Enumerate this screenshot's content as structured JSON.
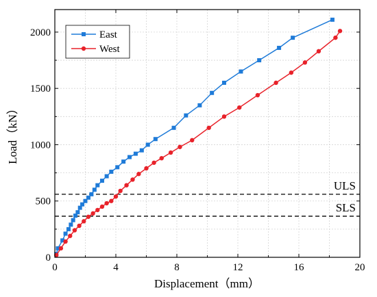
{
  "chart_data": {
    "type": "line",
    "title": "",
    "xlabel": "Displacement（mm）",
    "ylabel": "Load（kN）",
    "xlim": [
      0,
      20
    ],
    "ylim": [
      0,
      2200
    ],
    "xticks": [
      "0",
      "4",
      "8",
      "12",
      "16",
      "20"
    ],
    "yticks": [
      "0",
      "500",
      "1000",
      "1500",
      "2000"
    ],
    "xtick_values": [
      0,
      4,
      8,
      12,
      16,
      20
    ],
    "ytick_values": [
      0,
      500,
      1000,
      1500,
      2000
    ],
    "grid": true,
    "legend_position": "top-left",
    "reference_lines": [
      {
        "label": "ULS",
        "y": 560
      },
      {
        "label": "SLS",
        "y": 365
      }
    ],
    "series": [
      {
        "name": "East",
        "color": "#1f7bd8",
        "marker": "square",
        "x": [
          0.1,
          0.2,
          0.5,
          0.7,
          0.9,
          1.05,
          1.2,
          1.35,
          1.5,
          1.65,
          1.8,
          2.0,
          2.2,
          2.4,
          2.6,
          2.8,
          3.1,
          3.4,
          3.7,
          4.1,
          4.5,
          4.9,
          5.3,
          5.7,
          6.1,
          6.6,
          7.8,
          8.6,
          9.5,
          10.3,
          11.1,
          12.2,
          13.4,
          14.7,
          15.6,
          18.2
        ],
        "y": [
          30,
          80,
          150,
          210,
          250,
          290,
          330,
          370,
          400,
          440,
          470,
          500,
          530,
          560,
          600,
          640,
          680,
          720,
          760,
          800,
          850,
          890,
          920,
          950,
          1000,
          1050,
          1150,
          1260,
          1350,
          1460,
          1550,
          1650,
          1750,
          1860,
          1950,
          2110
        ]
      },
      {
        "name": "West",
        "color": "#e8222a",
        "marker": "circle",
        "x": [
          0.1,
          0.4,
          0.7,
          1.0,
          1.3,
          1.6,
          1.9,
          2.2,
          2.5,
          2.8,
          3.1,
          3.4,
          3.7,
          4.0,
          4.3,
          4.7,
          5.1,
          5.5,
          6.0,
          6.5,
          7.0,
          7.6,
          8.2,
          9.0,
          10.1,
          11.1,
          12.1,
          13.3,
          14.5,
          15.5,
          16.4,
          17.3,
          18.4,
          18.7
        ],
        "y": [
          20,
          80,
          140,
          190,
          240,
          280,
          320,
          360,
          390,
          420,
          450,
          480,
          500,
          540,
          590,
          640,
          690,
          740,
          790,
          840,
          880,
          930,
          980,
          1040,
          1150,
          1250,
          1330,
          1440,
          1550,
          1640,
          1730,
          1830,
          1950,
          2010
        ]
      }
    ]
  }
}
